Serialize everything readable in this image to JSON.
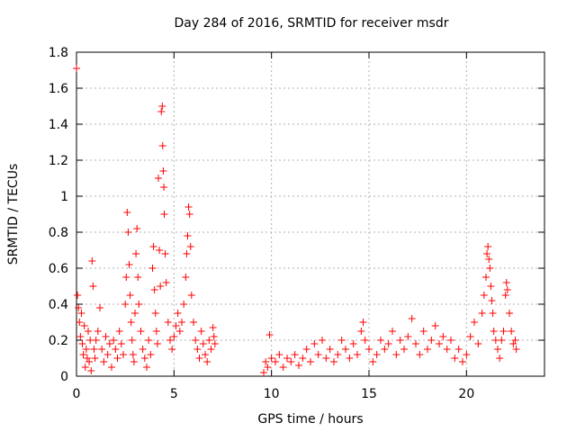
{
  "chart_data": {
    "type": "scatter",
    "title": "Day 284 of 2016, SRMTID for receiver msdr",
    "xlabel": "GPS time / hours",
    "ylabel": "SRMTID / TECUs",
    "xlim": [
      0,
      24
    ],
    "ylim": [
      0,
      1.8
    ],
    "x_ticks": [
      0,
      5,
      10,
      15,
      20
    ],
    "x_tick_labels": [
      "0",
      "5",
      "10",
      "15",
      "20"
    ],
    "y_ticks": [
      0,
      0.2,
      0.4,
      0.6,
      0.8,
      1,
      1.2,
      1.4,
      1.6,
      1.8
    ],
    "y_tick_labels": [
      "0",
      "0.2",
      "0.4",
      "0.6",
      "0.8",
      "1",
      "1.2",
      "1.4",
      "1.6",
      "1.8"
    ],
    "grid": true,
    "marker": "+",
    "color": "#ff0000",
    "series": [
      {
        "name": "SRMTID",
        "points": [
          [
            0.0,
            1.71
          ],
          [
            0.05,
            0.45
          ],
          [
            0.1,
            0.38
          ],
          [
            0.15,
            0.3
          ],
          [
            0.2,
            0.22
          ],
          [
            0.25,
            0.35
          ],
          [
            0.3,
            0.18
          ],
          [
            0.35,
            0.12
          ],
          [
            0.4,
            0.28
          ],
          [
            0.45,
            0.05
          ],
          [
            0.5,
            0.15
          ],
          [
            0.55,
            0.1
          ],
          [
            0.6,
            0.25
          ],
          [
            0.65,
            0.08
          ],
          [
            0.7,
            0.2
          ],
          [
            0.75,
            0.03
          ],
          [
            0.8,
            0.64
          ],
          [
            0.85,
            0.5
          ],
          [
            0.9,
            0.15
          ],
          [
            0.95,
            0.1
          ],
          [
            1.0,
            0.2
          ],
          [
            1.1,
            0.25
          ],
          [
            1.2,
            0.38
          ],
          [
            1.3,
            0.15
          ],
          [
            1.4,
            0.08
          ],
          [
            1.5,
            0.22
          ],
          [
            1.6,
            0.12
          ],
          [
            1.7,
            0.18
          ],
          [
            1.8,
            0.05
          ],
          [
            1.9,
            0.2
          ],
          [
            2.0,
            0.15
          ],
          [
            2.1,
            0.1
          ],
          [
            2.2,
            0.25
          ],
          [
            2.3,
            0.18
          ],
          [
            2.4,
            0.12
          ],
          [
            2.5,
            0.4
          ],
          [
            2.55,
            0.55
          ],
          [
            2.6,
            0.91
          ],
          [
            2.65,
            0.8
          ],
          [
            2.7,
            0.62
          ],
          [
            2.75,
            0.45
          ],
          [
            2.8,
            0.3
          ],
          [
            2.85,
            0.2
          ],
          [
            2.9,
            0.12
          ],
          [
            2.95,
            0.08
          ],
          [
            3.0,
            0.35
          ],
          [
            3.05,
            0.68
          ],
          [
            3.1,
            0.82
          ],
          [
            3.15,
            0.55
          ],
          [
            3.2,
            0.4
          ],
          [
            3.3,
            0.25
          ],
          [
            3.4,
            0.15
          ],
          [
            3.5,
            0.1
          ],
          [
            3.6,
            0.05
          ],
          [
            3.7,
            0.2
          ],
          [
            3.8,
            0.12
          ],
          [
            3.9,
            0.6
          ],
          [
            3.95,
            0.72
          ],
          [
            4.0,
            0.48
          ],
          [
            4.05,
            0.35
          ],
          [
            4.1,
            0.25
          ],
          [
            4.15,
            0.18
          ],
          [
            4.2,
            1.1
          ],
          [
            4.25,
            0.7
          ],
          [
            4.3,
            0.5
          ],
          [
            4.35,
            1.47
          ],
          [
            4.4,
            1.5
          ],
          [
            4.42,
            1.28
          ],
          [
            4.45,
            1.14
          ],
          [
            4.48,
            1.05
          ],
          [
            4.5,
            0.9
          ],
          [
            4.55,
            0.68
          ],
          [
            4.6,
            0.52
          ],
          [
            4.7,
            0.3
          ],
          [
            4.8,
            0.2
          ],
          [
            4.9,
            0.15
          ],
          [
            5.0,
            0.22
          ],
          [
            5.1,
            0.28
          ],
          [
            5.2,
            0.35
          ],
          [
            5.3,
            0.25
          ],
          [
            5.4,
            0.3
          ],
          [
            5.5,
            0.4
          ],
          [
            5.6,
            0.55
          ],
          [
            5.65,
            0.68
          ],
          [
            5.7,
            0.78
          ],
          [
            5.75,
            0.94
          ],
          [
            5.8,
            0.9
          ],
          [
            5.85,
            0.72
          ],
          [
            5.9,
            0.45
          ],
          [
            6.0,
            0.3
          ],
          [
            6.1,
            0.2
          ],
          [
            6.2,
            0.15
          ],
          [
            6.3,
            0.1
          ],
          [
            6.4,
            0.25
          ],
          [
            6.5,
            0.18
          ],
          [
            6.6,
            0.12
          ],
          [
            6.7,
            0.08
          ],
          [
            6.8,
            0.2
          ],
          [
            6.9,
            0.15
          ],
          [
            7.0,
            0.27
          ],
          [
            7.05,
            0.22
          ],
          [
            7.1,
            0.18
          ],
          [
            9.6,
            0.02
          ],
          [
            9.7,
            0.08
          ],
          [
            9.8,
            0.05
          ],
          [
            9.9,
            0.23
          ],
          [
            10.0,
            0.1
          ],
          [
            10.2,
            0.08
          ],
          [
            10.4,
            0.12
          ],
          [
            10.6,
            0.05
          ],
          [
            10.8,
            0.1
          ],
          [
            11.0,
            0.08
          ],
          [
            11.2,
            0.12
          ],
          [
            11.4,
            0.06
          ],
          [
            11.6,
            0.1
          ],
          [
            11.8,
            0.15
          ],
          [
            12.0,
            0.08
          ],
          [
            12.2,
            0.18
          ],
          [
            12.4,
            0.12
          ],
          [
            12.6,
            0.2
          ],
          [
            12.8,
            0.1
          ],
          [
            13.0,
            0.15
          ],
          [
            13.2,
            0.08
          ],
          [
            13.4,
            0.12
          ],
          [
            13.6,
            0.2
          ],
          [
            13.8,
            0.15
          ],
          [
            14.0,
            0.1
          ],
          [
            14.2,
            0.18
          ],
          [
            14.4,
            0.12
          ],
          [
            14.6,
            0.25
          ],
          [
            14.7,
            0.3
          ],
          [
            14.8,
            0.2
          ],
          [
            15.0,
            0.15
          ],
          [
            15.2,
            0.08
          ],
          [
            15.4,
            0.12
          ],
          [
            15.6,
            0.2
          ],
          [
            15.8,
            0.15
          ],
          [
            16.0,
            0.18
          ],
          [
            16.2,
            0.25
          ],
          [
            16.4,
            0.12
          ],
          [
            16.6,
            0.2
          ],
          [
            16.8,
            0.15
          ],
          [
            17.0,
            0.22
          ],
          [
            17.2,
            0.32
          ],
          [
            17.4,
            0.18
          ],
          [
            17.6,
            0.12
          ],
          [
            17.8,
            0.25
          ],
          [
            18.0,
            0.15
          ],
          [
            18.2,
            0.2
          ],
          [
            18.4,
            0.28
          ],
          [
            18.6,
            0.18
          ],
          [
            18.8,
            0.22
          ],
          [
            19.0,
            0.15
          ],
          [
            19.2,
            0.2
          ],
          [
            19.4,
            0.1
          ],
          [
            19.6,
            0.15
          ],
          [
            19.8,
            0.08
          ],
          [
            20.0,
            0.12
          ],
          [
            20.2,
            0.22
          ],
          [
            20.4,
            0.3
          ],
          [
            20.6,
            0.18
          ],
          [
            20.8,
            0.35
          ],
          [
            20.9,
            0.45
          ],
          [
            21.0,
            0.55
          ],
          [
            21.05,
            0.68
          ],
          [
            21.1,
            0.72
          ],
          [
            21.15,
            0.65
          ],
          [
            21.2,
            0.6
          ],
          [
            21.25,
            0.5
          ],
          [
            21.3,
            0.42
          ],
          [
            21.35,
            0.35
          ],
          [
            21.4,
            0.25
          ],
          [
            21.5,
            0.2
          ],
          [
            21.6,
            0.15
          ],
          [
            21.7,
            0.1
          ],
          [
            21.8,
            0.2
          ],
          [
            21.9,
            0.25
          ],
          [
            22.0,
            0.45
          ],
          [
            22.05,
            0.52
          ],
          [
            22.1,
            0.48
          ],
          [
            22.2,
            0.35
          ],
          [
            22.3,
            0.25
          ],
          [
            22.4,
            0.18
          ],
          [
            22.5,
            0.2
          ],
          [
            22.55,
            0.15
          ]
        ]
      }
    ]
  }
}
